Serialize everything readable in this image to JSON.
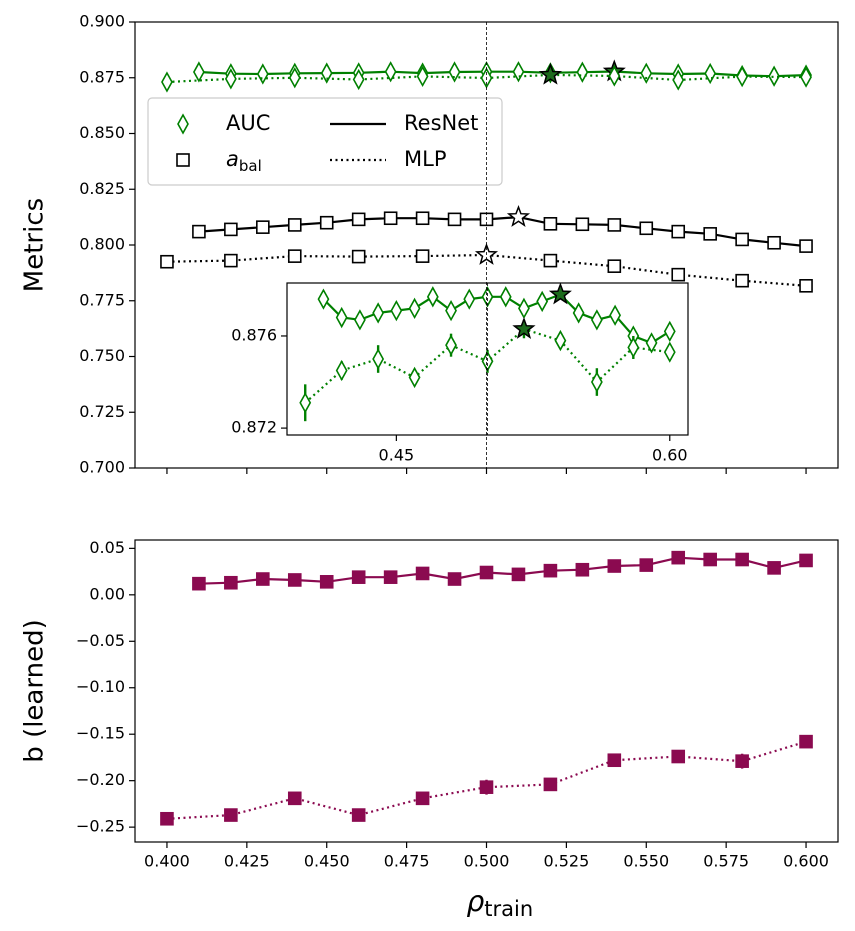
{
  "chart_data": [
    {
      "type": "line",
      "ylabel": "Metrics",
      "xlim": [
        0.39,
        0.61
      ],
      "xticks": [
        0.4,
        0.425,
        0.45,
        0.475,
        0.5,
        0.525,
        0.55,
        0.575,
        0.6
      ],
      "show_xtick_labels": false,
      "ylim": [
        0.7,
        0.9
      ],
      "yticks": [
        {
          "value": 0.7,
          "label": "0.700"
        },
        {
          "value": 0.725,
          "label": "0.725"
        },
        {
          "value": 0.75,
          "label": "0.750"
        },
        {
          "value": 0.775,
          "label": "0.775"
        },
        {
          "value": 0.8,
          "label": "0.800"
        },
        {
          "value": 0.825,
          "label": "0.825"
        },
        {
          "value": 0.85,
          "label": "0.850"
        },
        {
          "value": 0.875,
          "label": "0.875"
        },
        {
          "value": 0.9,
          "label": "0.900"
        }
      ],
      "vline": 0.5,
      "legend": {
        "position": "upper left",
        "metrics": [
          {
            "name": "AUC",
            "marker": "diamond",
            "color": "#008000"
          },
          {
            "name": "a",
            "sub": "bal",
            "marker": "square",
            "color": "#000000"
          }
        ],
        "models": [
          {
            "name": "ResNet",
            "dash": "solid"
          },
          {
            "name": "MLP",
            "dash": "dotted"
          }
        ]
      },
      "series": [
        {
          "color": "#008000",
          "marker": "diamond",
          "fill": "#ffffff",
          "dash": "solid",
          "inset": true,
          "best": 13,
          "star_fill": "#1d6b1d",
          "x": [
            0.41,
            0.42,
            0.43,
            0.44,
            0.45,
            0.46,
            0.47,
            0.48,
            0.49,
            0.5,
            0.51,
            0.52,
            0.53,
            0.54,
            0.55,
            0.56,
            0.57,
            0.58,
            0.59,
            0.6
          ],
          "values": [
            0.8776,
            0.8768,
            0.8767,
            0.877,
            0.8771,
            0.8772,
            0.8777,
            0.8771,
            0.8776,
            0.8777,
            0.8777,
            0.8772,
            0.8775,
            0.8778,
            0.877,
            0.8767,
            0.8769,
            0.876,
            0.8757,
            0.8762
          ]
        },
        {
          "color": "#008000",
          "marker": "diamond",
          "fill": "#ffffff",
          "dash": "dotted",
          "inset": true,
          "best": 6,
          "star_fill": "#1d6b1d",
          "x": [
            0.4,
            0.42,
            0.44,
            0.46,
            0.48,
            0.5,
            0.52,
            0.54,
            0.56,
            0.58,
            0.6
          ],
          "values": [
            0.8731,
            0.8745,
            0.875,
            0.8742,
            0.8756,
            0.8749,
            0.8763,
            0.8758,
            0.874,
            0.8755,
            0.8753
          ],
          "errors": [
            0.0008,
            0.0004,
            0.0006,
            0.0003,
            0.0005,
            0.0005,
            0.0004,
            0.0003,
            0.0006,
            0.0005,
            0.0003
          ]
        },
        {
          "color": "#000000",
          "marker": "square",
          "fill": "#ffffff",
          "dash": "solid",
          "best": 10,
          "star_fill": "#ffffff",
          "x": [
            0.41,
            0.42,
            0.43,
            0.44,
            0.45,
            0.46,
            0.47,
            0.48,
            0.49,
            0.5,
            0.51,
            0.52,
            0.53,
            0.54,
            0.55,
            0.56,
            0.57,
            0.58,
            0.59,
            0.6
          ],
          "values": [
            0.806,
            0.807,
            0.808,
            0.809,
            0.81,
            0.8115,
            0.812,
            0.812,
            0.8115,
            0.8115,
            0.8125,
            0.8095,
            0.8093,
            0.809,
            0.8075,
            0.806,
            0.805,
            0.8025,
            0.801,
            0.7995
          ]
        },
        {
          "color": "#000000",
          "marker": "square",
          "fill": "#ffffff",
          "dash": "dotted",
          "best": 5,
          "star_fill": "#ffffff",
          "x": [
            0.4,
            0.42,
            0.44,
            0.46,
            0.48,
            0.5,
            0.52,
            0.54,
            0.56,
            0.58,
            0.6
          ],
          "values": [
            0.7925,
            0.793,
            0.795,
            0.7948,
            0.795,
            0.7955,
            0.793,
            0.7905,
            0.7867,
            0.784,
            0.7817
          ]
        }
      ],
      "inset_axes": {
        "xlim": [
          0.39,
          0.61
        ],
        "xticks": [
          0.45,
          {
            "value": 0.6,
            "label": "0.60"
          }
        ],
        "ylim": [
          0.8717,
          0.8783
        ],
        "yticks": [
          0.872,
          0.876
        ]
      }
    },
    {
      "type": "line",
      "ylabel": "b (learned)",
      "xlabel": "ρ",
      "xlabel_sub": "train",
      "xlim": [
        0.39,
        0.61
      ],
      "xticks": [
        {
          "value": 0.4,
          "label": "0.400"
        },
        {
          "value": 0.425,
          "label": "0.425"
        },
        {
          "value": 0.45,
          "label": "0.450"
        },
        {
          "value": 0.475,
          "label": "0.475"
        },
        {
          "value": 0.5,
          "label": "0.500"
        },
        {
          "value": 0.525,
          "label": "0.525"
        },
        {
          "value": 0.55,
          "label": "0.550"
        },
        {
          "value": 0.575,
          "label": "0.575"
        },
        {
          "value": 0.6,
          "label": "0.600"
        }
      ],
      "show_xtick_labels": true,
      "ylim": [
        -0.266,
        0.059
      ],
      "yticks": [
        {
          "value": 0.05,
          "label": "0.05"
        },
        {
          "value": 0,
          "label": "0.00"
        },
        {
          "value": -0.05,
          "label": "−0.05"
        },
        {
          "value": -0.1,
          "label": "−0.10"
        },
        {
          "value": -0.15,
          "label": "−0.15"
        },
        {
          "value": -0.2,
          "label": "−0.20"
        },
        {
          "value": -0.25,
          "label": "−0.25"
        }
      ],
      "series": [
        {
          "color": "#8b0a50",
          "marker": "square",
          "fill": "#8b0a50",
          "dash": "solid",
          "x": [
            0.41,
            0.42,
            0.43,
            0.44,
            0.45,
            0.46,
            0.47,
            0.48,
            0.49,
            0.5,
            0.51,
            0.52,
            0.53,
            0.54,
            0.55,
            0.56,
            0.57,
            0.58,
            0.59,
            0.6
          ],
          "values": [
            0.012,
            0.013,
            0.017,
            0.016,
            0.014,
            0.019,
            0.019,
            0.023,
            0.017,
            0.024,
            0.022,
            0.026,
            0.027,
            0.031,
            0.032,
            0.04,
            0.038,
            0.038,
            0.029,
            0.037
          ]
        },
        {
          "color": "#8b0a50",
          "marker": "square",
          "fill": "#8b0a50",
          "dash": "dotted",
          "x": [
            0.4,
            0.42,
            0.44,
            0.46,
            0.48,
            0.5,
            0.52,
            0.54,
            0.56,
            0.58,
            0.6
          ],
          "values": [
            -0.241,
            -0.237,
            -0.219,
            -0.237,
            -0.219,
            -0.207,
            -0.204,
            -0.178,
            -0.174,
            -0.179,
            -0.158
          ],
          "errors": [
            0.003,
            0.004,
            0.003,
            0.006,
            0.003,
            0.008,
            0.003,
            0.004,
            0.006,
            0.008,
            0.004
          ]
        }
      ]
    }
  ]
}
